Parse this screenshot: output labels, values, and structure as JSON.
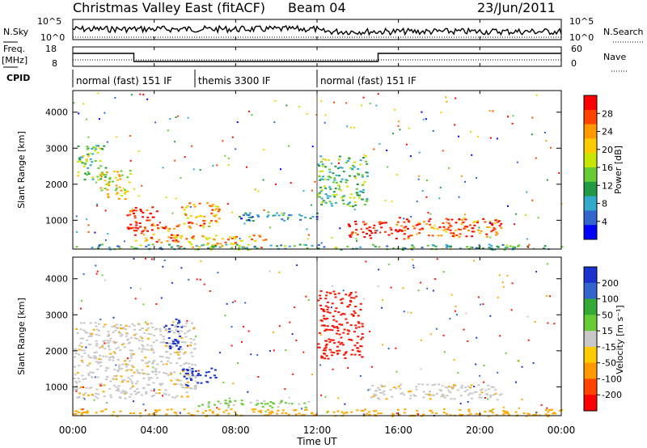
{
  "header": {
    "station": "Christmas Valley East (fitACF)",
    "beam": "Beam 04",
    "date": "23/Jun/2011"
  },
  "strips": {
    "nsky_label": "N.Sky",
    "nsearch_label": "N.Search",
    "freq_label": "Freq.",
    "freq_unit": "[MHz]",
    "nave_label": "Nave",
    "cpid_label": "CPID",
    "nsky_ticks": [
      "10^5",
      "10^0"
    ],
    "nsearch_ticks": [
      "10^5",
      "10^0"
    ],
    "freq_ticks": [
      "18",
      "8"
    ],
    "nave_ticks": [
      "60",
      "0"
    ]
  },
  "cpid_modes": [
    {
      "label": "normal (fast) 151 IF",
      "start_h": 0,
      "end_h": 6
    },
    {
      "label": "themis 3300 IF",
      "start_h": 6,
      "end_h": 12
    },
    {
      "label": "normal (fast) 151 IF",
      "start_h": 12,
      "end_h": 24
    }
  ],
  "chart_data": [
    {
      "type": "heatmap",
      "panel": "power",
      "ylabel": "Slant Range [km]",
      "colorbar_label": "Power [dB]",
      "colorbar_ticks": [
        "28",
        "24",
        "20",
        "16",
        "12",
        "8",
        "4"
      ],
      "colorbar_colors": [
        "#ff0000",
        "#ff4400",
        "#ff9900",
        "#ffcc00",
        "#c8e600",
        "#66cc33",
        "#229944",
        "#33aacc",
        "#3366cc",
        "#0000ff"
      ],
      "yticks": [
        "4000",
        "3000",
        "2000",
        "1000"
      ],
      "ylim": [
        200,
        4600
      ],
      "xlim_hours": [
        0,
        24
      ],
      "regions": [
        {
          "t0": 0.2,
          "t1": 1.6,
          "r0": 2100,
          "r1": 3100,
          "level": 0.45
        },
        {
          "t0": 1.2,
          "t1": 2.8,
          "r0": 1600,
          "r1": 2400,
          "level": 0.6
        },
        {
          "t0": 2.6,
          "t1": 4.2,
          "r0": 700,
          "r1": 1400,
          "level": 0.95
        },
        {
          "t0": 3.0,
          "t1": 5.2,
          "r0": 400,
          "r1": 900,
          "level": 0.8
        },
        {
          "t0": 5.3,
          "t1": 7.2,
          "r0": 800,
          "r1": 1500,
          "level": 0.75
        },
        {
          "t0": 5.0,
          "t1": 9.5,
          "r0": 250,
          "r1": 600,
          "level": 0.7
        },
        {
          "t0": 8.0,
          "t1": 12.0,
          "r0": 1000,
          "r1": 1250,
          "level": 0.25
        },
        {
          "t0": 12.0,
          "t1": 14.5,
          "r0": 1400,
          "r1": 2800,
          "level": 0.4
        },
        {
          "t0": 13.5,
          "t1": 16.5,
          "r0": 500,
          "r1": 1000,
          "level": 0.95
        },
        {
          "t0": 16.0,
          "t1": 21.0,
          "r0": 550,
          "r1": 1100,
          "level": 0.85
        },
        {
          "t0": 0.0,
          "t1": 24.0,
          "r0": 200,
          "r1": 350,
          "level": 0.35
        }
      ]
    },
    {
      "type": "heatmap",
      "panel": "velocity",
      "ylabel": "Slant Range [km]",
      "xlabel": "Time UT",
      "colorbar_label": "Velocity [m s⁻¹]",
      "colorbar_ticks": [
        "200",
        "100",
        "50",
        "15",
        "-15",
        "-50",
        "-100",
        "-200"
      ],
      "colorbar_colors": [
        "#1a33cc",
        "#3366cc",
        "#33aa33",
        "#66cc33",
        "#c8c8c8",
        "#ffcc00",
        "#ff9900",
        "#ff4400",
        "#ff0000"
      ],
      "yticks": [
        "4000",
        "3000",
        "2000",
        "1000"
      ],
      "xticks": [
        "00:00",
        "04:00",
        "08:00",
        "12:00",
        "16:00",
        "20:00",
        "00:00"
      ],
      "ylim": [
        200,
        4600
      ],
      "xlim_hours": [
        0,
        24
      ],
      "regions": [
        {
          "t0": 0.0,
          "t1": 6.0,
          "r0": 700,
          "r1": 2800,
          "vel": 0
        },
        {
          "t0": 4.5,
          "t1": 5.3,
          "r0": 2000,
          "r1": 2900,
          "vel": 180
        },
        {
          "t0": 5.3,
          "t1": 7.0,
          "r0": 1050,
          "r1": 1550,
          "vel": 190
        },
        {
          "t0": 6.0,
          "t1": 12.0,
          "r0": 450,
          "r1": 650,
          "vel": 30
        },
        {
          "t0": 12.0,
          "t1": 14.2,
          "r0": 1800,
          "r1": 3700,
          "vel": -200
        },
        {
          "t0": 14.5,
          "t1": 21.0,
          "r0": 650,
          "r1": 1100,
          "vel": 0
        },
        {
          "t0": 0.0,
          "t1": 24.0,
          "r0": 200,
          "r1": 400,
          "vel": -40
        }
      ]
    }
  ]
}
